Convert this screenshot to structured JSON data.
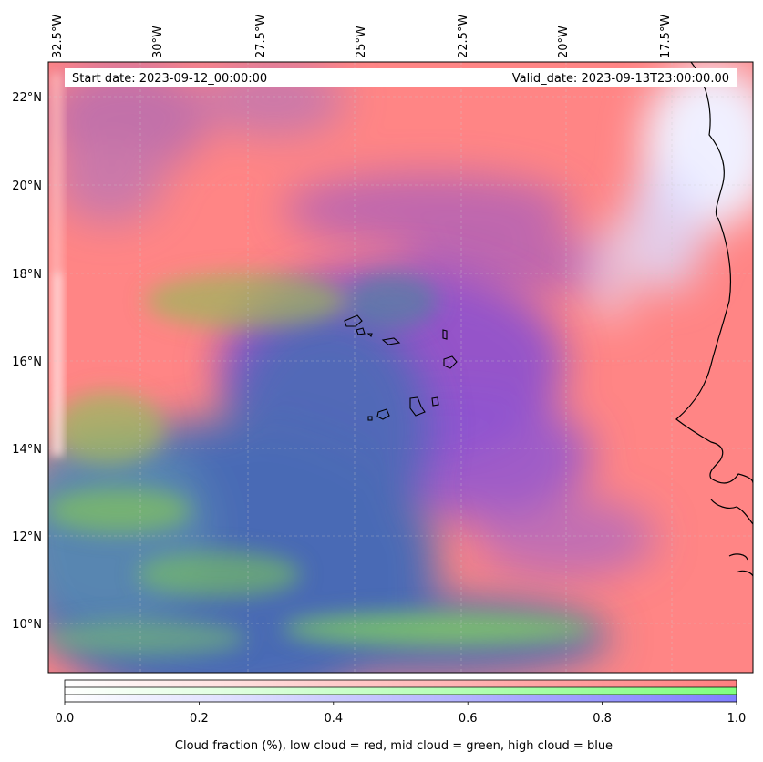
{
  "map": {
    "lon_ticks": [
      "32.5°W",
      "30°W",
      "27.5°W",
      "25°W",
      "22.5°W",
      "20°W",
      "17.5°W"
    ],
    "lat_ticks": [
      "22°N",
      "20°N",
      "18°N",
      "16°N",
      "14°N",
      "12°N",
      "10°N"
    ],
    "info": {
      "start_date": "Start date: 2023-09-12_00:00:00",
      "valid_date": "Valid_date: 2023-09-13T23:00:00.00"
    },
    "features": [
      "coastline",
      "cabo-verde-islands"
    ]
  },
  "colorbar": {
    "ticks": [
      "0.0",
      "0.2",
      "0.4",
      "0.6",
      "0.8",
      "1.0"
    ],
    "caption": "Cloud fraction (%), low cloud = red, mid cloud = green, high cloud = blue",
    "colors": {
      "low": "#ff7f7f",
      "mid": "#7fff7f",
      "high": "#7f7fff"
    }
  },
  "palette": {
    "low_cloud": "#ff8282",
    "mid_cloud": "#7ecb5a",
    "high_cloud": "#4a6bb5",
    "mix_purple": "#8a4fd0",
    "clear": "#f2f2ff"
  }
}
